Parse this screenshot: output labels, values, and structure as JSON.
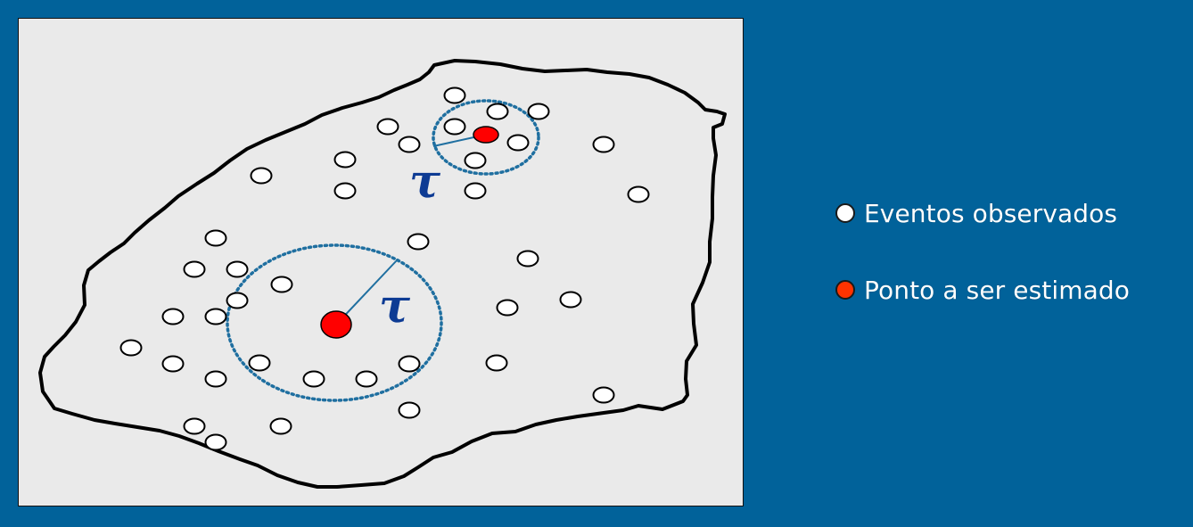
{
  "diagram": {
    "radius_symbol": "τ",
    "colors": {
      "background": "#01629a",
      "panel": "#eaeaea",
      "event_fill": "#ffffff",
      "estimate_fill": "#ff0000",
      "ring": "#1f6fa0",
      "radius_line": "#1f6fa0",
      "tau": "#0d3b94",
      "region_outline": "#000000"
    }
  },
  "legend": {
    "events_label": "Eventos observados",
    "events_color": "#ffffff",
    "estimate_label": "Ponto a ser estimado",
    "estimate_color": "#ff3300"
  }
}
